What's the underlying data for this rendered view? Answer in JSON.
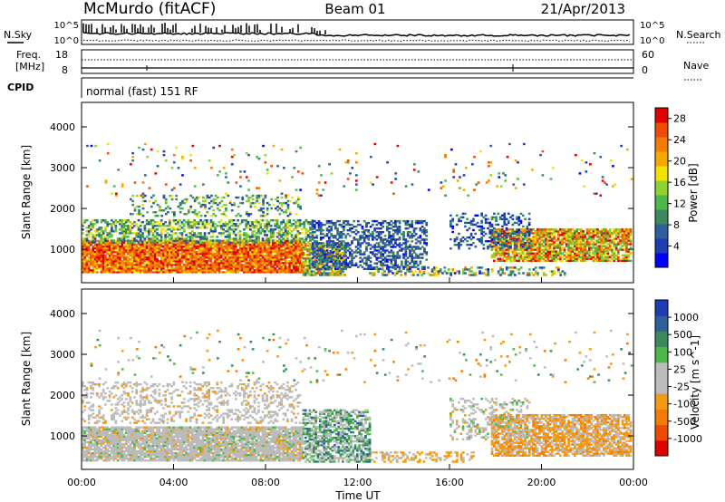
{
  "header": {
    "station": "McMurdo (fitACF)",
    "beam": "Beam 01",
    "date": "21/Apr/2013"
  },
  "noise_panel": {
    "left_label": "N.Sky",
    "right_label": "N.Search",
    "left_ticks": [
      "10^5",
      "10^0"
    ],
    "right_ticks": [
      "10^5",
      "10^0"
    ]
  },
  "freq_panel": {
    "left_label_line1": "Freq.",
    "left_label_line2": "[MHz]",
    "right_label": "Nave",
    "left_ticks": [
      "18",
      "8"
    ],
    "right_ticks": [
      "60",
      "0"
    ]
  },
  "cpid_panel": {
    "label": "CPID",
    "text": "normal (fast) 151 RF"
  },
  "colors": {
    "power_scale": [
      "#0000ff",
      "#1e3cb4",
      "#2c5f9c",
      "#3c8a5c",
      "#4db84a",
      "#8fd12e",
      "#f2e200",
      "#f5a800",
      "#f57a00",
      "#f04a00",
      "#e00000"
    ],
    "velocity_scale": [
      "#e00000",
      "#f04a00",
      "#f57a00",
      "#f59a10",
      "#bbbbbb",
      "#bbbbbb",
      "#4db84a",
      "#3c8a5c",
      "#2c5f9c",
      "#1e3cb4"
    ]
  },
  "chart_data": [
    {
      "type": "heatmap",
      "name": "power",
      "ylabel": "Slant Range [km]",
      "yticks": [
        "1000",
        "2000",
        "3000",
        "4000"
      ],
      "ylim": [
        180,
        4600
      ],
      "xlim": [
        0,
        24
      ],
      "colorbar": {
        "label": "Power [dB]",
        "ticks": [
          "4",
          "8",
          "12",
          "16",
          "20",
          "24",
          "28"
        ],
        "range": [
          0,
          30
        ]
      },
      "regions": [
        {
          "t0": 0.0,
          "t1": 9.6,
          "r0": 420,
          "r1": 1200,
          "min": 18,
          "max": 30,
          "density": 0.95
        },
        {
          "t0": 9.6,
          "t1": 11.4,
          "r0": 350,
          "r1": 1150,
          "min": 6,
          "max": 26,
          "density": 0.75
        },
        {
          "t0": 0.0,
          "t1": 10.0,
          "r0": 1150,
          "r1": 1700,
          "min": 4,
          "max": 20,
          "density": 0.55
        },
        {
          "t0": 10.0,
          "t1": 15.0,
          "r0": 500,
          "r1": 1700,
          "min": 2,
          "max": 10,
          "density": 0.5
        },
        {
          "t0": 12.5,
          "t1": 21.0,
          "r0": 350,
          "r1": 550,
          "min": 2,
          "max": 24,
          "density": 0.35
        },
        {
          "t0": 17.8,
          "t1": 23.9,
          "r0": 700,
          "r1": 1500,
          "min": 10,
          "max": 30,
          "density": 0.8
        },
        {
          "t0": 16.0,
          "t1": 19.5,
          "r0": 1000,
          "r1": 1900,
          "min": 2,
          "max": 10,
          "density": 0.3
        },
        {
          "t0": 2.0,
          "t1": 9.5,
          "r0": 1800,
          "r1": 2300,
          "min": 4,
          "max": 18,
          "density": 0.25
        },
        {
          "t0": 0.2,
          "t1": 23.9,
          "r0": 2300,
          "r1": 3600,
          "min": 2,
          "max": 30,
          "density": 0.03
        }
      ]
    },
    {
      "type": "heatmap",
      "name": "velocity",
      "ylabel": "Slant Range [km]",
      "yticks": [
        "1000",
        "2000",
        "3000",
        "4000"
      ],
      "ylim": [
        180,
        4600
      ],
      "xlim": [
        0,
        24
      ],
      "xlabel": "Time UT",
      "xticks": [
        "00:00",
        "04:00",
        "08:00",
        "12:00",
        "16:00",
        "20:00",
        "00:00"
      ],
      "colorbar": {
        "label": "Velocity [m s^-1]",
        "ticks": [
          "1000",
          "500",
          "100",
          "25",
          "-25",
          "-100",
          "-500",
          "-1000"
        ],
        "range": [
          -1000,
          1000
        ]
      },
      "regions": [
        {
          "t0": 0.0,
          "t1": 9.6,
          "r0": 380,
          "r1": 1200,
          "min": -250,
          "max": 250,
          "density": 0.9
        },
        {
          "t0": 9.6,
          "t1": 12.5,
          "r0": 350,
          "r1": 1650,
          "min": -200,
          "max": 700,
          "density": 0.65
        },
        {
          "t0": 0.0,
          "t1": 9.5,
          "r0": 1300,
          "r1": 2300,
          "min": -300,
          "max": 200,
          "density": 0.3
        },
        {
          "t0": 12.5,
          "t1": 17.0,
          "r0": 350,
          "r1": 600,
          "min": -400,
          "max": -40,
          "density": 0.35
        },
        {
          "t0": 17.8,
          "t1": 23.9,
          "r0": 500,
          "r1": 1500,
          "min": -450,
          "max": -60,
          "density": 0.75
        },
        {
          "t0": 16.0,
          "t1": 19.5,
          "r0": 900,
          "r1": 1900,
          "min": -300,
          "max": 300,
          "density": 0.3
        },
        {
          "t0": 0.2,
          "t1": 23.9,
          "r0": 2300,
          "r1": 3600,
          "min": -600,
          "max": 600,
          "density": 0.03
        }
      ]
    }
  ]
}
